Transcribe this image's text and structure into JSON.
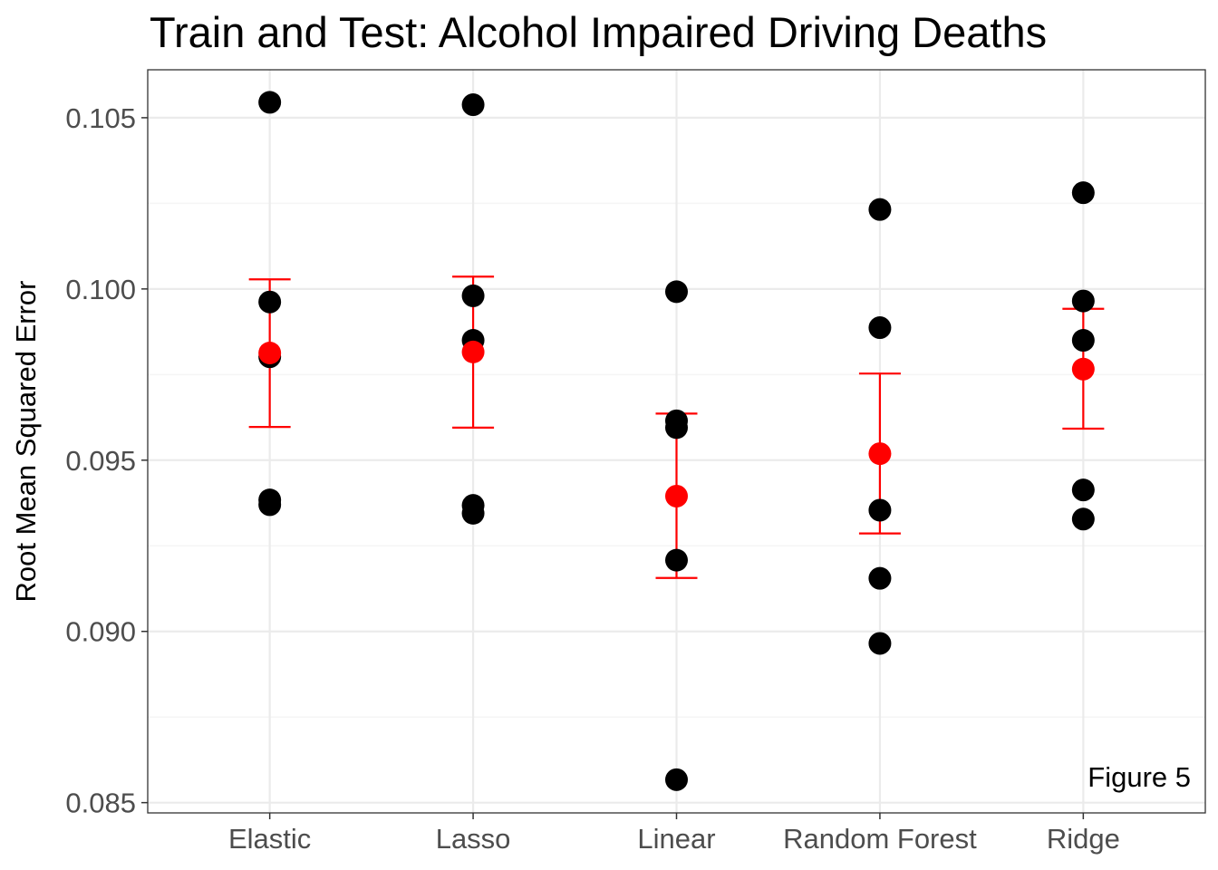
{
  "chart_data": {
    "type": "scatter",
    "title": "Train and Test: Alcohol Impaired Driving Deaths",
    "xlabel": "",
    "ylabel": "Root Mean Squared Error",
    "annotation": "Figure 5",
    "categories": [
      "Elastic",
      "Lasso",
      "Linear",
      "Random Forest",
      "Ridge"
    ],
    "ylim": [
      0.0847,
      0.1064
    ],
    "y_ticks": [
      0.085,
      0.09,
      0.095,
      0.1,
      0.105
    ],
    "y_tick_labels": [
      "0.085",
      "0.090",
      "0.095",
      "0.100",
      "0.105"
    ],
    "grid": true,
    "points": [
      {
        "category": "Elastic",
        "values": [
          0.10545,
          0.09962,
          0.09802,
          0.09384,
          0.0937
        ]
      },
      {
        "category": "Lasso",
        "values": [
          0.10538,
          0.0998,
          0.0985,
          0.09368,
          0.09345
        ]
      },
      {
        "category": "Linear",
        "values": [
          0.09992,
          0.09615,
          0.09595,
          0.09208,
          0.08567
        ]
      },
      {
        "category": "Random Forest",
        "values": [
          0.10232,
          0.09887,
          0.09354,
          0.09155,
          0.08965
        ]
      },
      {
        "category": "Ridge",
        "values": [
          0.10281,
          0.09965,
          0.0985,
          0.09413,
          0.09328
        ]
      }
    ],
    "means": [
      0.09813,
      0.09816,
      0.09395,
      0.09519,
      0.09766
    ],
    "error_bars": [
      {
        "low": 0.09597,
        "high": 0.10028
      },
      {
        "low": 0.09595,
        "high": 0.10036
      },
      {
        "low": 0.09156,
        "high": 0.09636
      },
      {
        "low": 0.09286,
        "high": 0.09753
      },
      {
        "low": 0.09592,
        "high": 0.09942
      }
    ],
    "colors": {
      "points": "#000000",
      "mean": "#ff0000",
      "error_bar": "#ff0000",
      "panel_border": "#333333",
      "grid_major": "#ebebeb",
      "grid_minor": "#f5f5f5"
    }
  }
}
